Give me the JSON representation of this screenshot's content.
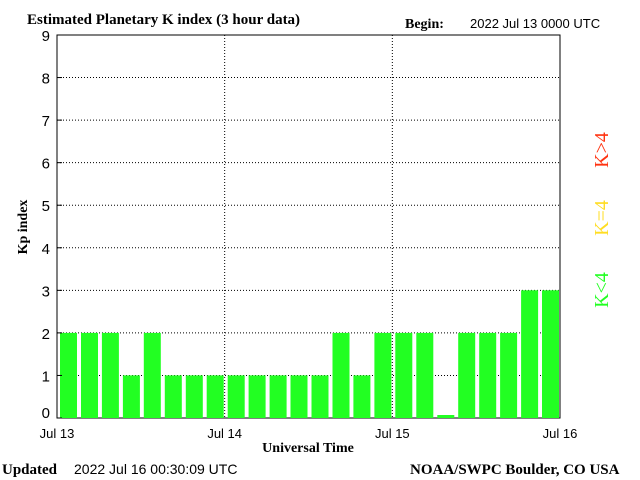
{
  "header": {
    "title": "Estimated Planetary K index (3 hour data)",
    "begin_label": "Begin:",
    "begin_value": "2022 Jul 13 0000 UTC"
  },
  "footer": {
    "updated_label": "Updated",
    "updated_value": "2022 Jul 16 00:30:09 UTC",
    "credit": "NOAA/SWPC Boulder, CO USA"
  },
  "legend": {
    "high": "K>4",
    "equal": "K=4",
    "low": "K<4"
  },
  "colors": {
    "low": "#22ff22",
    "equal": "#ffdd22",
    "high": "#ff3311",
    "axis": "#000000",
    "grid": "#000000"
  },
  "chart_data": {
    "type": "bar",
    "ylabel": "Kp index",
    "xlabel": "Universal Time",
    "ylim": [
      0,
      9
    ],
    "yticks": [
      "0",
      "1",
      "2",
      "3",
      "4",
      "5",
      "6",
      "7",
      "8",
      "9"
    ],
    "x_tick_labels": [
      "Jul 13",
      "Jul 14",
      "Jul 15",
      "Jul 16"
    ],
    "grid": true,
    "values": [
      2,
      2,
      2,
      1,
      2,
      1,
      1,
      1,
      1,
      1,
      1,
      1,
      1,
      2,
      1,
      2,
      2,
      2,
      0.07,
      2,
      2,
      2,
      3,
      3
    ]
  }
}
